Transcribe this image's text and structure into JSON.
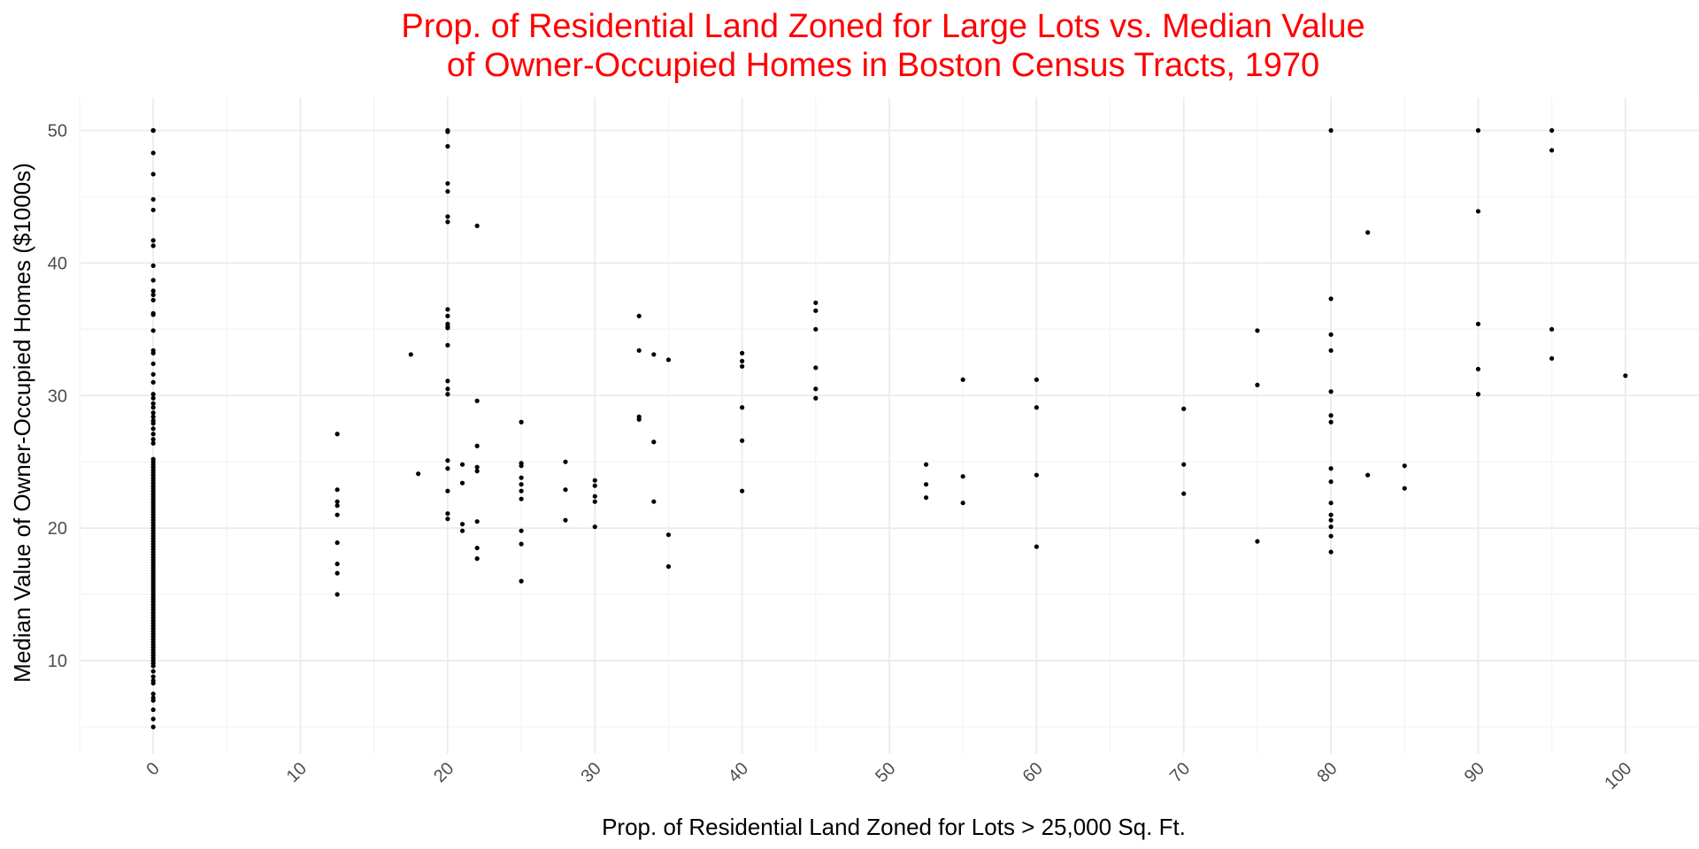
{
  "chart_data": {
    "type": "scatter",
    "title": "Prop. of Residential Land Zoned for Large Lots vs. Median Value",
    "title_line2": "of Owner-Occupied Homes in Boston Census Tracts, 1970",
    "title_color": "#ff0000",
    "xlabel": "Prop. of Residential Land Zoned for Lots > 25,000 Sq. Ft.",
    "ylabel": "Median Value of Owner-Occupied Homes ($1000s)",
    "xlim": [
      -5,
      105
    ],
    "ylim": [
      3,
      52.5
    ],
    "x_ticks": [
      0,
      10,
      20,
      30,
      40,
      50,
      60,
      70,
      80,
      90,
      100
    ],
    "x_tick_labels": [
      "0",
      "10",
      "20",
      "30",
      "40",
      "50",
      "60",
      "70",
      "80",
      "90",
      "100"
    ],
    "x_minor_ticks": [
      -5,
      5,
      15,
      25,
      35,
      45,
      55,
      65,
      75,
      85,
      95,
      105
    ],
    "y_ticks": [
      10,
      20,
      30,
      40,
      50
    ],
    "y_tick_labels": [
      "10",
      "20",
      "30",
      "40",
      "50"
    ],
    "y_minor_ticks": [
      5,
      15,
      25,
      35,
      45
    ],
    "x_tick_rotation": "-45",
    "grid": true,
    "theme": "minimal",
    "point_color": "#000000",
    "grid_color": "#ebebeb",
    "points": [
      {
        "x": 0,
        "y": 50.0
      },
      {
        "x": 0,
        "y": 50.0
      },
      {
        "x": 0,
        "y": 50.0
      },
      {
        "x": 0,
        "y": 48.3
      },
      {
        "x": 0,
        "y": 46.7
      },
      {
        "x": 0,
        "y": 44.8
      },
      {
        "x": 0,
        "y": 44.0
      },
      {
        "x": 0,
        "y": 41.7
      },
      {
        "x": 0,
        "y": 41.3
      },
      {
        "x": 0,
        "y": 39.8
      },
      {
        "x": 0,
        "y": 38.7
      },
      {
        "x": 0,
        "y": 37.9
      },
      {
        "x": 0,
        "y": 37.6
      },
      {
        "x": 0,
        "y": 37.2
      },
      {
        "x": 0,
        "y": 36.2
      },
      {
        "x": 0,
        "y": 36.1
      },
      {
        "x": 0,
        "y": 34.9
      },
      {
        "x": 0,
        "y": 33.4
      },
      {
        "x": 0,
        "y": 33.2
      },
      {
        "x": 0,
        "y": 32.4
      },
      {
        "x": 0,
        "y": 31.6
      },
      {
        "x": 0,
        "y": 31.0
      },
      {
        "x": 0,
        "y": 30.1
      },
      {
        "x": 0,
        "y": 29.8
      },
      {
        "x": 0,
        "y": 29.4
      },
      {
        "x": 0,
        "y": 29.1
      },
      {
        "x": 0,
        "y": 28.7
      },
      {
        "x": 0,
        "y": 28.4
      },
      {
        "x": 0,
        "y": 28.1
      },
      {
        "x": 0,
        "y": 27.9
      },
      {
        "x": 0,
        "y": 27.5
      },
      {
        "x": 0,
        "y": 27.1
      },
      {
        "x": 0,
        "y": 26.7
      },
      {
        "x": 0,
        "y": 26.4
      },
      {
        "x": 0,
        "y": 25.2
      },
      {
        "x": 0,
        "y": 25.0
      },
      {
        "x": 0,
        "y": 24.8
      },
      {
        "x": 0,
        "y": 24.6
      },
      {
        "x": 0,
        "y": 24.4
      },
      {
        "x": 0,
        "y": 24.2
      },
      {
        "x": 0,
        "y": 24.0
      },
      {
        "x": 0,
        "y": 23.8
      },
      {
        "x": 0,
        "y": 23.6
      },
      {
        "x": 0,
        "y": 23.4
      },
      {
        "x": 0,
        "y": 23.2
      },
      {
        "x": 0,
        "y": 23.0
      },
      {
        "x": 0,
        "y": 22.8
      },
      {
        "x": 0,
        "y": 22.6
      },
      {
        "x": 0,
        "y": 22.4
      },
      {
        "x": 0,
        "y": 22.2
      },
      {
        "x": 0,
        "y": 22.0
      },
      {
        "x": 0,
        "y": 21.8
      },
      {
        "x": 0,
        "y": 21.6
      },
      {
        "x": 0,
        "y": 21.4
      },
      {
        "x": 0,
        "y": 21.2
      },
      {
        "x": 0,
        "y": 21.0
      },
      {
        "x": 0,
        "y": 20.8
      },
      {
        "x": 0,
        "y": 20.6
      },
      {
        "x": 0,
        "y": 20.4
      },
      {
        "x": 0,
        "y": 20.2
      },
      {
        "x": 0,
        "y": 20.0
      },
      {
        "x": 0,
        "y": 19.8
      },
      {
        "x": 0,
        "y": 19.6
      },
      {
        "x": 0,
        "y": 19.4
      },
      {
        "x": 0,
        "y": 19.2
      },
      {
        "x": 0,
        "y": 19.0
      },
      {
        "x": 0,
        "y": 18.8
      },
      {
        "x": 0,
        "y": 18.6
      },
      {
        "x": 0,
        "y": 18.4
      },
      {
        "x": 0,
        "y": 18.2
      },
      {
        "x": 0,
        "y": 18.0
      },
      {
        "x": 0,
        "y": 17.8
      },
      {
        "x": 0,
        "y": 17.6
      },
      {
        "x": 0,
        "y": 17.4
      },
      {
        "x": 0,
        "y": 17.2
      },
      {
        "x": 0,
        "y": 17.0
      },
      {
        "x": 0,
        "y": 16.8
      },
      {
        "x": 0,
        "y": 16.6
      },
      {
        "x": 0,
        "y": 16.4
      },
      {
        "x": 0,
        "y": 16.2
      },
      {
        "x": 0,
        "y": 16.0
      },
      {
        "x": 0,
        "y": 15.8
      },
      {
        "x": 0,
        "y": 15.6
      },
      {
        "x": 0,
        "y": 15.4
      },
      {
        "x": 0,
        "y": 15.2
      },
      {
        "x": 0,
        "y": 15.0
      },
      {
        "x": 0,
        "y": 14.8
      },
      {
        "x": 0,
        "y": 14.6
      },
      {
        "x": 0,
        "y": 14.4
      },
      {
        "x": 0,
        "y": 14.2
      },
      {
        "x": 0,
        "y": 14.0
      },
      {
        "x": 0,
        "y": 13.8
      },
      {
        "x": 0,
        "y": 13.6
      },
      {
        "x": 0,
        "y": 13.4
      },
      {
        "x": 0,
        "y": 13.2
      },
      {
        "x": 0,
        "y": 13.0
      },
      {
        "x": 0,
        "y": 12.8
      },
      {
        "x": 0,
        "y": 12.6
      },
      {
        "x": 0,
        "y": 12.4
      },
      {
        "x": 0,
        "y": 12.2
      },
      {
        "x": 0,
        "y": 12.0
      },
      {
        "x": 0,
        "y": 11.8
      },
      {
        "x": 0,
        "y": 11.6
      },
      {
        "x": 0,
        "y": 11.4
      },
      {
        "x": 0,
        "y": 11.2
      },
      {
        "x": 0,
        "y": 11.0
      },
      {
        "x": 0,
        "y": 10.8
      },
      {
        "x": 0,
        "y": 10.6
      },
      {
        "x": 0,
        "y": 10.4
      },
      {
        "x": 0,
        "y": 10.2
      },
      {
        "x": 0,
        "y": 10.0
      },
      {
        "x": 0,
        "y": 9.8
      },
      {
        "x": 0,
        "y": 9.6
      },
      {
        "x": 0,
        "y": 9.2
      },
      {
        "x": 0,
        "y": 8.8
      },
      {
        "x": 0,
        "y": 8.5
      },
      {
        "x": 0,
        "y": 8.3
      },
      {
        "x": 0,
        "y": 7.5
      },
      {
        "x": 0,
        "y": 7.2
      },
      {
        "x": 0,
        "y": 7.0
      },
      {
        "x": 0,
        "y": 6.3
      },
      {
        "x": 0,
        "y": 5.6
      },
      {
        "x": 0,
        "y": 5.0
      },
      {
        "x": 12.5,
        "y": 27.1
      },
      {
        "x": 12.5,
        "y": 22.9
      },
      {
        "x": 12.5,
        "y": 22.0
      },
      {
        "x": 12.5,
        "y": 21.7
      },
      {
        "x": 12.5,
        "y": 21.0
      },
      {
        "x": 12.5,
        "y": 18.9
      },
      {
        "x": 12.5,
        "y": 17.3
      },
      {
        "x": 12.5,
        "y": 16.6
      },
      {
        "x": 12.5,
        "y": 15.0
      },
      {
        "x": 17.5,
        "y": 33.1
      },
      {
        "x": 18,
        "y": 24.1
      },
      {
        "x": 20,
        "y": 50.0
      },
      {
        "x": 20,
        "y": 49.9
      },
      {
        "x": 20,
        "y": 48.8
      },
      {
        "x": 20,
        "y": 46.0
      },
      {
        "x": 20,
        "y": 45.4
      },
      {
        "x": 20,
        "y": 43.5
      },
      {
        "x": 20,
        "y": 43.1
      },
      {
        "x": 20,
        "y": 36.5
      },
      {
        "x": 20,
        "y": 36.0
      },
      {
        "x": 20,
        "y": 35.4
      },
      {
        "x": 20,
        "y": 35.2
      },
      {
        "x": 20,
        "y": 35.1
      },
      {
        "x": 20,
        "y": 33.8
      },
      {
        "x": 20,
        "y": 31.1
      },
      {
        "x": 20,
        "y": 30.5
      },
      {
        "x": 20,
        "y": 30.1
      },
      {
        "x": 20,
        "y": 25.1
      },
      {
        "x": 20,
        "y": 24.5
      },
      {
        "x": 20,
        "y": 22.8
      },
      {
        "x": 20,
        "y": 21.1
      },
      {
        "x": 20,
        "y": 20.7
      },
      {
        "x": 21,
        "y": 24.8
      },
      {
        "x": 21,
        "y": 23.4
      },
      {
        "x": 21,
        "y": 20.3
      },
      {
        "x": 21,
        "y": 19.8
      },
      {
        "x": 22,
        "y": 42.8
      },
      {
        "x": 22,
        "y": 29.6
      },
      {
        "x": 22,
        "y": 26.2
      },
      {
        "x": 22,
        "y": 24.6
      },
      {
        "x": 22,
        "y": 24.3
      },
      {
        "x": 22,
        "y": 20.5
      },
      {
        "x": 22,
        "y": 18.5
      },
      {
        "x": 22,
        "y": 17.7
      },
      {
        "x": 25,
        "y": 28.0
      },
      {
        "x": 25,
        "y": 24.9
      },
      {
        "x": 25,
        "y": 24.7
      },
      {
        "x": 25,
        "y": 23.8
      },
      {
        "x": 25,
        "y": 23.3
      },
      {
        "x": 25,
        "y": 22.8
      },
      {
        "x": 25,
        "y": 22.2
      },
      {
        "x": 25,
        "y": 19.8
      },
      {
        "x": 25,
        "y": 18.8
      },
      {
        "x": 25,
        "y": 16.0
      },
      {
        "x": 28,
        "y": 25.0
      },
      {
        "x": 28,
        "y": 22.9
      },
      {
        "x": 28,
        "y": 20.6
      },
      {
        "x": 30,
        "y": 23.6
      },
      {
        "x": 30,
        "y": 23.2
      },
      {
        "x": 30,
        "y": 22.4
      },
      {
        "x": 30,
        "y": 22.0
      },
      {
        "x": 30,
        "y": 20.1
      },
      {
        "x": 33,
        "y": 36.0
      },
      {
        "x": 33,
        "y": 33.4
      },
      {
        "x": 33,
        "y": 28.4
      },
      {
        "x": 33,
        "y": 28.2
      },
      {
        "x": 34,
        "y": 33.1
      },
      {
        "x": 34,
        "y": 26.5
      },
      {
        "x": 34,
        "y": 22.0
      },
      {
        "x": 35,
        "y": 32.7
      },
      {
        "x": 35,
        "y": 19.5
      },
      {
        "x": 35,
        "y": 17.1
      },
      {
        "x": 40,
        "y": 33.2
      },
      {
        "x": 40,
        "y": 32.6
      },
      {
        "x": 40,
        "y": 32.2
      },
      {
        "x": 40,
        "y": 29.1
      },
      {
        "x": 40,
        "y": 26.6
      },
      {
        "x": 40,
        "y": 22.8
      },
      {
        "x": 45,
        "y": 37.0
      },
      {
        "x": 45,
        "y": 36.4
      },
      {
        "x": 45,
        "y": 35.0
      },
      {
        "x": 45,
        "y": 32.1
      },
      {
        "x": 45,
        "y": 30.5
      },
      {
        "x": 45,
        "y": 29.8
      },
      {
        "x": 52.5,
        "y": 24.8
      },
      {
        "x": 52.5,
        "y": 23.3
      },
      {
        "x": 52.5,
        "y": 22.3
      },
      {
        "x": 55,
        "y": 31.2
      },
      {
        "x": 55,
        "y": 23.9
      },
      {
        "x": 55,
        "y": 21.9
      },
      {
        "x": 60,
        "y": 31.2
      },
      {
        "x": 60,
        "y": 29.1
      },
      {
        "x": 60,
        "y": 24.0
      },
      {
        "x": 60,
        "y": 18.6
      },
      {
        "x": 70,
        "y": 29.0
      },
      {
        "x": 70,
        "y": 24.8
      },
      {
        "x": 70,
        "y": 22.6
      },
      {
        "x": 75,
        "y": 34.9
      },
      {
        "x": 75,
        "y": 30.8
      },
      {
        "x": 75,
        "y": 19.0
      },
      {
        "x": 80,
        "y": 50.0
      },
      {
        "x": 80,
        "y": 37.3
      },
      {
        "x": 80,
        "y": 34.6
      },
      {
        "x": 80,
        "y": 33.4
      },
      {
        "x": 80,
        "y": 30.3
      },
      {
        "x": 80,
        "y": 28.5
      },
      {
        "x": 80,
        "y": 28.0
      },
      {
        "x": 80,
        "y": 24.5
      },
      {
        "x": 80,
        "y": 23.5
      },
      {
        "x": 80,
        "y": 21.9
      },
      {
        "x": 80,
        "y": 21.0
      },
      {
        "x": 80,
        "y": 20.6
      },
      {
        "x": 80,
        "y": 20.1
      },
      {
        "x": 80,
        "y": 19.4
      },
      {
        "x": 80,
        "y": 18.2
      },
      {
        "x": 82.5,
        "y": 42.3
      },
      {
        "x": 82.5,
        "y": 24.0
      },
      {
        "x": 85,
        "y": 24.7
      },
      {
        "x": 85,
        "y": 23.0
      },
      {
        "x": 90,
        "y": 50.0
      },
      {
        "x": 90,
        "y": 43.9
      },
      {
        "x": 90,
        "y": 35.4
      },
      {
        "x": 90,
        "y": 32.0
      },
      {
        "x": 90,
        "y": 30.1
      },
      {
        "x": 95,
        "y": 50.0
      },
      {
        "x": 95,
        "y": 48.5
      },
      {
        "x": 95,
        "y": 35.0
      },
      {
        "x": 95,
        "y": 32.8
      },
      {
        "x": 100,
        "y": 31.5
      }
    ]
  }
}
